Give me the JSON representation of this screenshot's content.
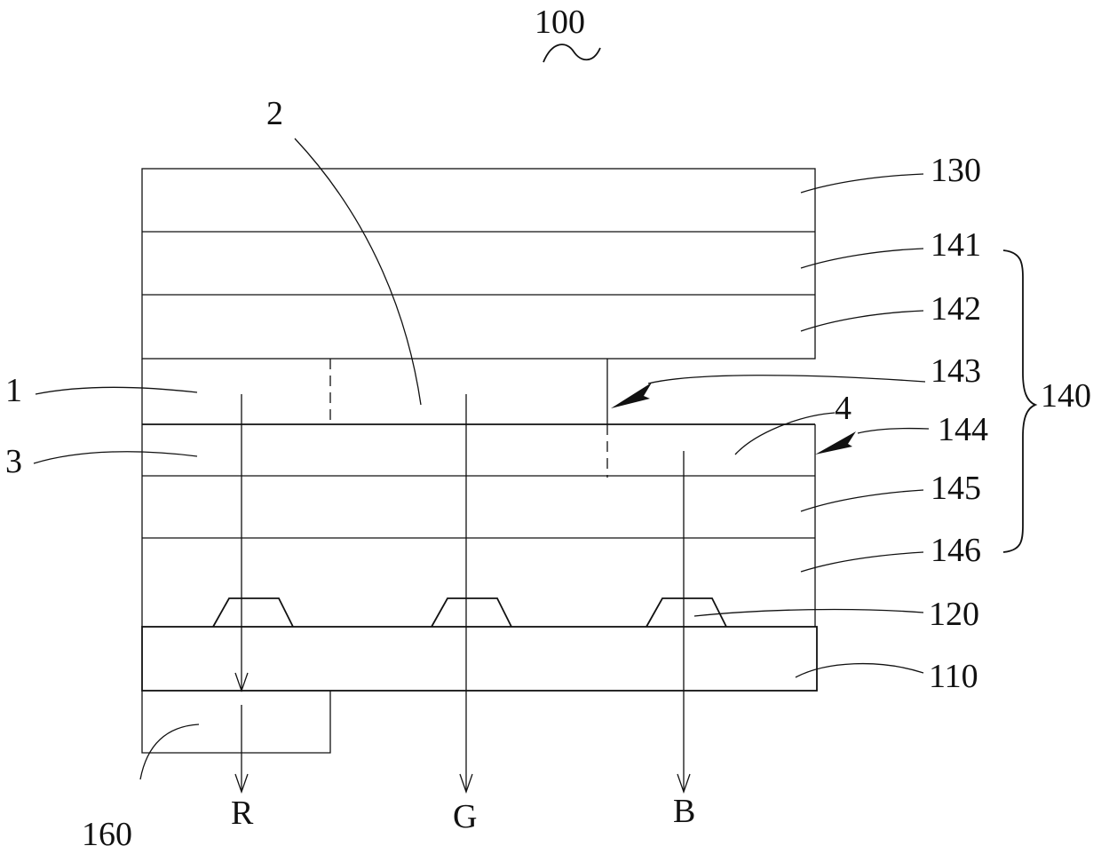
{
  "figure_ref": {
    "label": "100"
  },
  "layers": {
    "l130": "130",
    "l141": "141",
    "l142": "142",
    "l143": "143",
    "l144": "144",
    "l145": "145",
    "l146": "146",
    "l120": "120",
    "l110": "110",
    "l160": "160",
    "group140": "140"
  },
  "regions": {
    "r1": "1",
    "r2": "2",
    "r3": "3",
    "r4": "4"
  },
  "outputs": {
    "red": "R",
    "green": "G",
    "blue": "B"
  }
}
